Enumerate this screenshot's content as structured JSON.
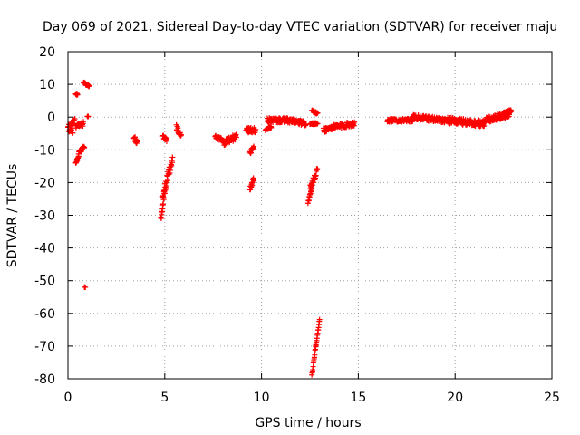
{
  "chart_data": {
    "type": "scatter",
    "title": "Day 069 of 2021, Sidereal Day-to-day VTEC variation (SDTVAR) for receiver maju",
    "xlabel": "GPS time / hours",
    "ylabel": "SDTVAR / TECUs",
    "xlim": [
      0,
      25
    ],
    "ylim": [
      -80,
      20
    ],
    "xticks": [
      0,
      5,
      10,
      15,
      20,
      25
    ],
    "yticks": [
      -80,
      -70,
      -60,
      -50,
      -40,
      -30,
      -20,
      -10,
      0,
      10,
      20
    ],
    "grid": true,
    "marker": "+",
    "color": "#ff0000",
    "segments": [
      {
        "x0": 0.0,
        "x1": 0.25,
        "y0": -3,
        "y1": -4,
        "spread": 2.5
      },
      {
        "x0": 0.15,
        "x1": 0.35,
        "y0": -2,
        "y1": -1,
        "spread": 2
      },
      {
        "x0": 0.4,
        "x1": 0.55,
        "y0": -14,
        "y1": -12,
        "spread": 1
      },
      {
        "x0": 0.55,
        "x1": 0.85,
        "y0": -11,
        "y1": -9,
        "spread": 1
      },
      {
        "x0": 0.4,
        "x1": 0.8,
        "y0": -3,
        "y1": -2,
        "spread": 1.5
      },
      {
        "x0": 0.4,
        "x1": 0.5,
        "y0": 7,
        "y1": 7,
        "spread": 0.5
      },
      {
        "x0": 0.8,
        "x1": 1.1,
        "y0": 10.5,
        "y1": 9.5,
        "spread": 0.5
      },
      {
        "x0": 1.0,
        "x1": 1.05,
        "y0": 0.2,
        "y1": 0.2,
        "spread": 0
      },
      {
        "x0": 0.85,
        "x1": 0.9,
        "y0": -52,
        "y1": -52,
        "spread": 0
      },
      {
        "x0": 3.4,
        "x1": 3.6,
        "y0": -6,
        "y1": -8,
        "spread": 1.5
      },
      {
        "x0": 4.8,
        "x1": 5.0,
        "y0": -31,
        "y1": -23,
        "spread": 2
      },
      {
        "x0": 4.9,
        "x1": 5.4,
        "y0": -24,
        "y1": -13,
        "spread": 3
      },
      {
        "x0": 4.9,
        "x1": 5.1,
        "y0": -6,
        "y1": -7,
        "spread": 1
      },
      {
        "x0": 5.6,
        "x1": 5.85,
        "y0": -3,
        "y1": -6,
        "spread": 1.5
      },
      {
        "x0": 7.6,
        "x1": 8.0,
        "y0": -6,
        "y1": -7,
        "spread": 1
      },
      {
        "x0": 8.0,
        "x1": 8.7,
        "y0": -8,
        "y1": -6,
        "spread": 2
      },
      {
        "x0": 9.2,
        "x1": 9.7,
        "y0": -4,
        "y1": -4,
        "spread": 1.5
      },
      {
        "x0": 9.4,
        "x1": 9.6,
        "y0": -11,
        "y1": -9,
        "spread": 1
      },
      {
        "x0": 9.4,
        "x1": 9.6,
        "y0": -22,
        "y1": -19,
        "spread": 1.5
      },
      {
        "x0": 10.2,
        "x1": 10.5,
        "y0": -4,
        "y1": -3,
        "spread": 0.5
      },
      {
        "x0": 10.3,
        "x1": 11.3,
        "y0": -1,
        "y1": -1,
        "spread": 1.5
      },
      {
        "x0": 11.3,
        "x1": 12.3,
        "y0": -1,
        "y1": -2,
        "spread": 1.5
      },
      {
        "x0": 12.6,
        "x1": 12.9,
        "y0": 2,
        "y1": 1,
        "spread": 0.5
      },
      {
        "x0": 12.4,
        "x1": 12.6,
        "y0": -26,
        "y1": -22,
        "spread": 1
      },
      {
        "x0": 12.5,
        "x1": 12.9,
        "y0": -22,
        "y1": -16,
        "spread": 2
      },
      {
        "x0": 12.6,
        "x1": 12.8,
        "y0": -79,
        "y1": -70,
        "spread": 1
      },
      {
        "x0": 12.8,
        "x1": 13.0,
        "y0": -70,
        "y1": -62,
        "spread": 1
      },
      {
        "x0": 12.5,
        "x1": 12.9,
        "y0": -2,
        "y1": -2,
        "spread": 0.5
      },
      {
        "x0": 13.2,
        "x1": 13.8,
        "y0": -4,
        "y1": -3,
        "spread": 1.5
      },
      {
        "x0": 13.8,
        "x1": 14.8,
        "y0": -3,
        "y1": -2,
        "spread": 1.5
      },
      {
        "x0": 16.5,
        "x1": 17.8,
        "y0": -1,
        "y1": -1,
        "spread": 1
      },
      {
        "x0": 17.8,
        "x1": 19.5,
        "y0": 0,
        "y1": -1,
        "spread": 1.5
      },
      {
        "x0": 19.5,
        "x1": 21.5,
        "y0": -1,
        "y1": -2,
        "spread": 2
      },
      {
        "x0": 21.5,
        "x1": 22.8,
        "y0": -1,
        "y1": 1,
        "spread": 2
      },
      {
        "x0": 22.5,
        "x1": 22.9,
        "y0": 1,
        "y1": 2,
        "spread": 1
      }
    ]
  }
}
